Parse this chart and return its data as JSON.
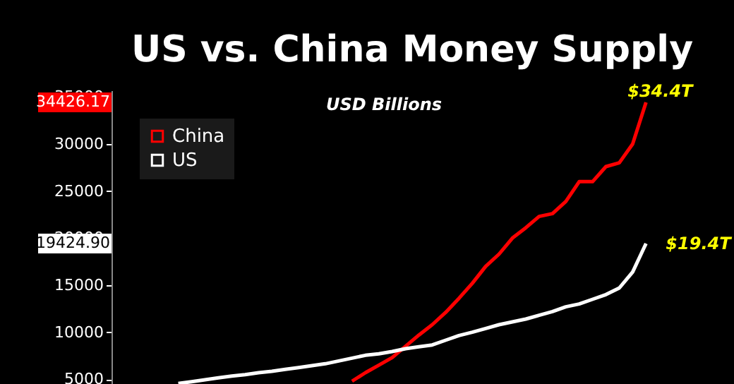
{
  "chart_data": {
    "type": "line",
    "title": "US vs. China Money Supply",
    "subtitle": "USD Billions",
    "categories": [
      null,
      null,
      null,
      null,
      null,
      null,
      null,
      null,
      null,
      null,
      null,
      null,
      null,
      null,
      null,
      null,
      null,
      null,
      null,
      null,
      null,
      null,
      null,
      null,
      null,
      null,
      null,
      null,
      null,
      null,
      null,
      null,
      null,
      null,
      null,
      null,
      null,
      null,
      null,
      null,
      null,
      null,
      null,
      null,
      null,
      null
    ],
    "series": [
      {
        "name": "China",
        "color": "#ff0000",
        "values": [
          null,
          null,
          null,
          null,
          null,
          null,
          null,
          null,
          null,
          null,
          null,
          null,
          null,
          null,
          null,
          null,
          null,
          null,
          4800,
          5700,
          6500,
          7300,
          8500,
          9700,
          10800,
          12100,
          13600,
          15200,
          17000,
          18300,
          20000,
          21100,
          22300,
          22600,
          23900,
          26000,
          26000,
          27600,
          28000,
          30000,
          34426.17,
          null,
          null,
          null,
          null,
          null
        ]
      },
      {
        "name": "US",
        "color": "#ffffff",
        "values": [
          null,
          null,
          null,
          null,
          null,
          4550,
          4750,
          4950,
          5150,
          5350,
          5500,
          5700,
          5850,
          6050,
          6250,
          6450,
          6650,
          6950,
          7250,
          7550,
          7700,
          7950,
          8250,
          8450,
          8650,
          9150,
          9650,
          10000,
          10400,
          10800,
          11100,
          11400,
          11800,
          12200,
          12700,
          13000,
          13500,
          14000,
          14700,
          16400,
          19424.9,
          null,
          null,
          null,
          null,
          null
        ]
      }
    ],
    "ylim": [
      4500,
      35700
    ],
    "yticks": [
      5000,
      10000,
      15000,
      20000,
      25000,
      30000,
      35000
    ],
    "grid": false,
    "legend": "top left",
    "annotations": [
      "34426.17",
      "19424.90",
      "$34.4T",
      "$19.4T"
    ]
  }
}
